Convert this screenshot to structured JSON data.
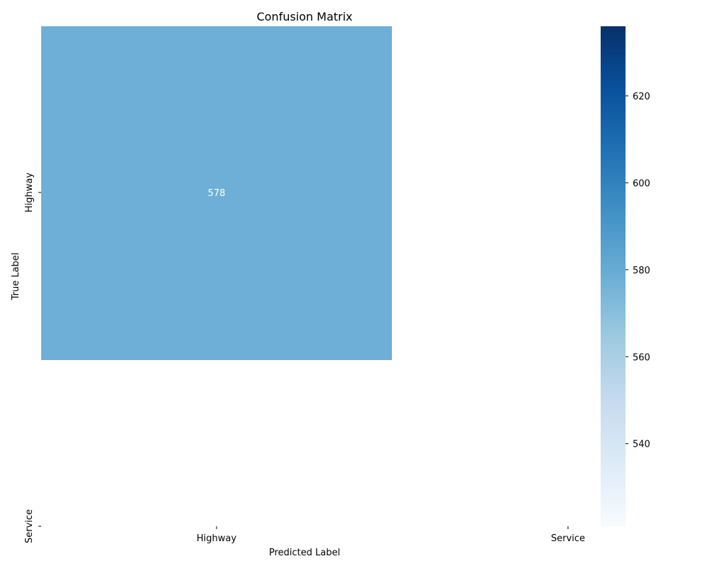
{
  "chart_data": {
    "type": "heatmap",
    "title": "Confusion Matrix",
    "xlabel": "Predicted Label",
    "ylabel": "True Label",
    "x_categories": [
      "Highway",
      "Service"
    ],
    "y_categories": [
      "Highway",
      "Service"
    ],
    "cells": [
      {
        "row": 0,
        "col": 0,
        "value": 578,
        "label": "578"
      }
    ],
    "colormap": "Blues",
    "colorbar": {
      "min": 521,
      "max": 636,
      "ticks": [
        540,
        560,
        580,
        600,
        620
      ],
      "tick_labels": [
        "540",
        "560",
        "580",
        "600",
        "620"
      ],
      "stops": [
        "#f7fbff",
        "#deebf7",
        "#c6dbef",
        "#9ecae1",
        "#6baed6",
        "#4292c6",
        "#2171b5",
        "#08519c",
        "#08306b"
      ]
    },
    "cell_text_color": "#ffffff"
  }
}
